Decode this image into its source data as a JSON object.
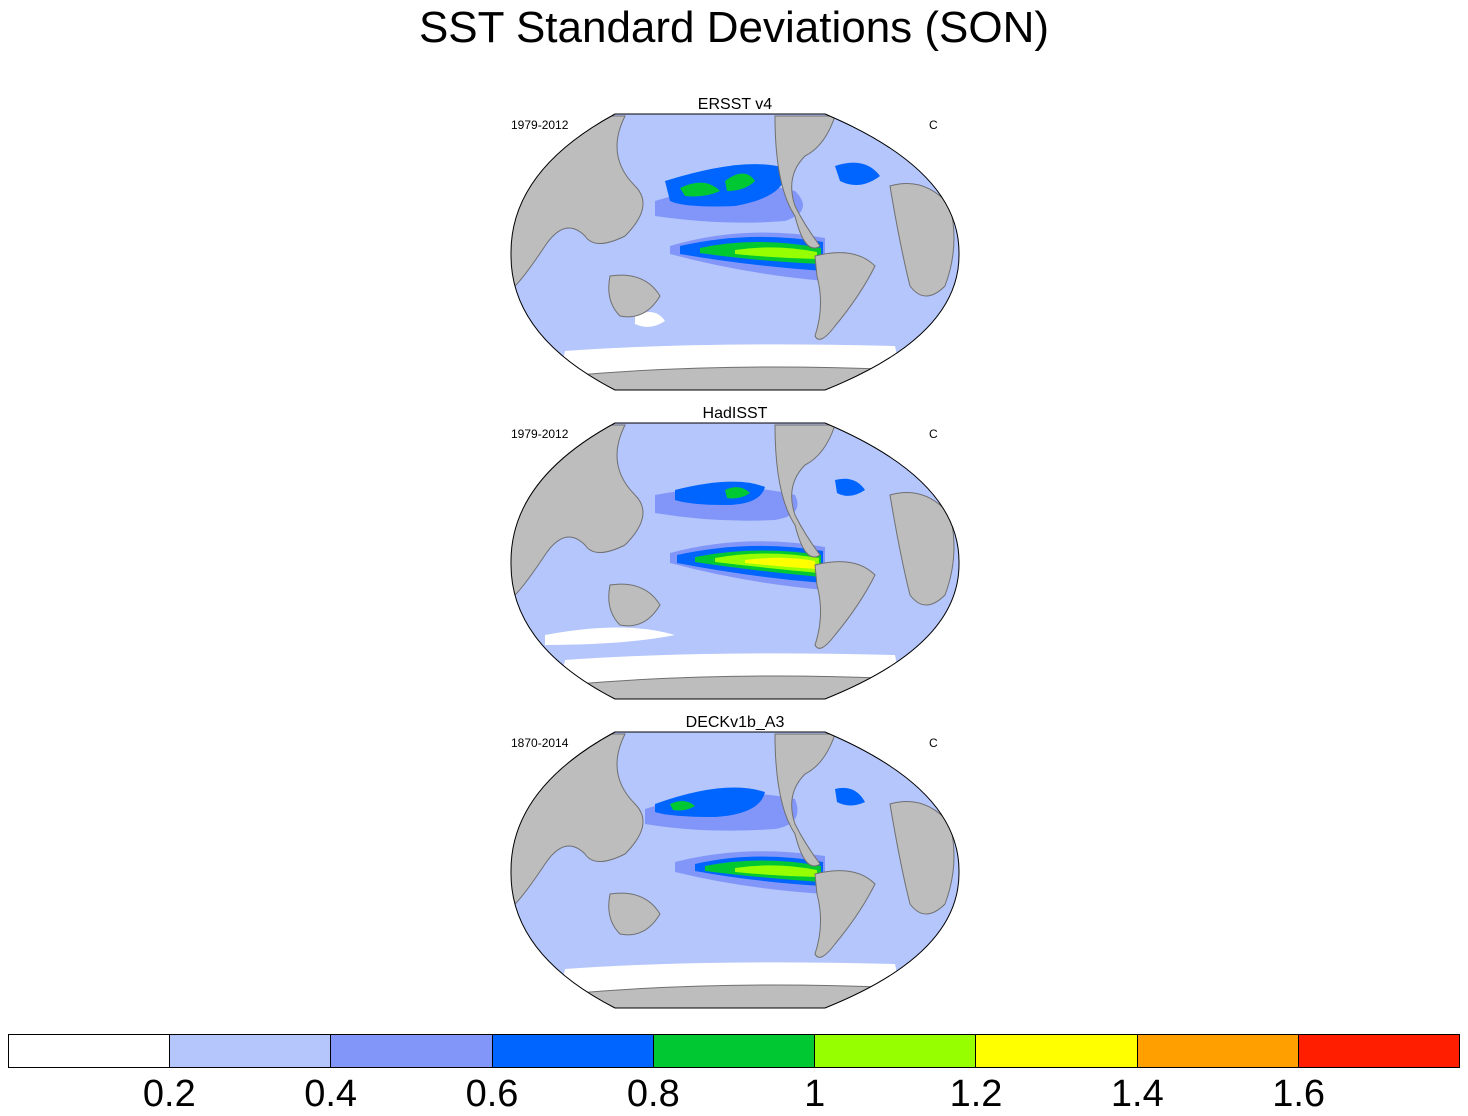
{
  "title": "SST Standard Deviations (SON)",
  "panels": [
    {
      "title": "ERSST v4",
      "years": "1979-2012",
      "units": "C",
      "variant": "ersst"
    },
    {
      "title": "HadISST",
      "years": "1979-2012",
      "units": "C",
      "variant": "hadisst"
    },
    {
      "title": "DECKv1b_A3",
      "years": "1870-2014",
      "units": "C",
      "variant": "deck"
    }
  ],
  "colorbar": {
    "levels": [
      0.2,
      0.4,
      0.6,
      0.8,
      1,
      1.2,
      1.4,
      1.6
    ],
    "labels": [
      "0.2",
      "0.4",
      "0.6",
      "0.8",
      "1",
      "1.2",
      "1.4",
      "1.6"
    ],
    "colors": [
      "#ffffff",
      "#b4c6fb",
      "#8296fa",
      "#0064ff",
      "#00c832",
      "#96ff00",
      "#ffff00",
      "#ffa000",
      "#ff1e00"
    ]
  },
  "colors": {
    "land": "#bdbdbd",
    "coast": "#707070",
    "ocean_base": "#b4c6fb"
  }
}
